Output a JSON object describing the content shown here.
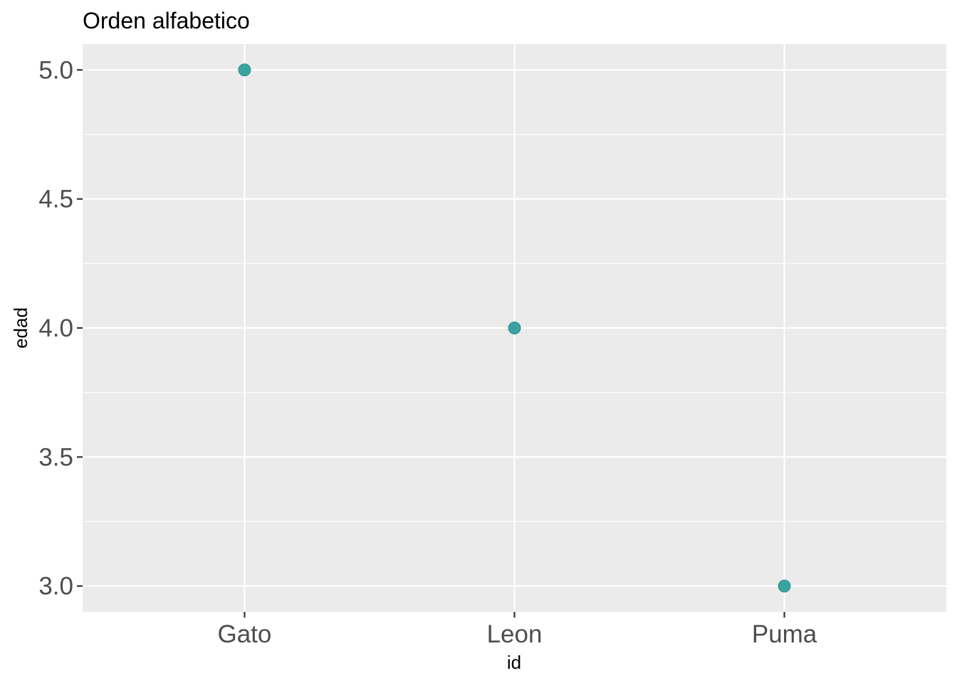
{
  "chart_data": {
    "type": "scatter",
    "title": "Orden alfabetico",
    "xlabel": "id",
    "ylabel": "edad",
    "categories": [
      "Gato",
      "Leon",
      "Puma"
    ],
    "values": [
      5.0,
      4.0,
      3.0
    ],
    "ylim": [
      2.9,
      5.1
    ],
    "yticks": [
      "3.0",
      "3.5",
      "4.0",
      "4.5",
      "5.0"
    ],
    "grid": true,
    "legend": "none",
    "point_color": "#3aa3a0",
    "panel_background": "#ebebeb",
    "grid_color": "#ffffff"
  }
}
